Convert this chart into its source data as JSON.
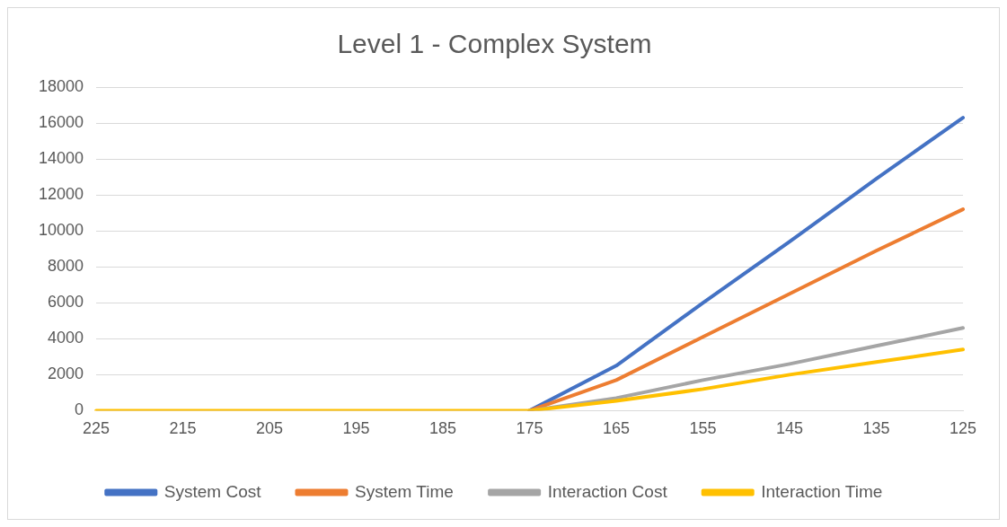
{
  "chart_data": {
    "type": "line",
    "title": "Level 1 - Complex System",
    "categories": [
      "225",
      "215",
      "205",
      "195",
      "185",
      "175",
      "165",
      "155",
      "145",
      "135",
      "125"
    ],
    "series": [
      {
        "name": "System Cost",
        "color": "#4472c4",
        "values": [
          null,
          null,
          null,
          null,
          null,
          0,
          2500,
          6000,
          9400,
          12900,
          16300
        ]
      },
      {
        "name": "System Time",
        "color": "#ed7d31",
        "values": [
          null,
          null,
          null,
          null,
          null,
          0,
          1700,
          4100,
          6500,
          8900,
          11200
        ]
      },
      {
        "name": "Interaction Cost",
        "color": "#a5a5a5",
        "values": [
          null,
          null,
          null,
          null,
          null,
          0,
          700,
          1700,
          2600,
          3600,
          4600
        ]
      },
      {
        "name": "Interaction Time",
        "color": "#ffc000",
        "values": [
          0,
          0,
          0,
          0,
          0,
          0,
          550,
          1200,
          2000,
          2700,
          3400
        ]
      }
    ],
    "ylim": [
      0,
      18000
    ],
    "yticks": [
      0,
      2000,
      4000,
      6000,
      8000,
      10000,
      12000,
      14000,
      16000,
      18000
    ],
    "grid": "y",
    "legend": "bottom",
    "marker": "none",
    "line_style": "solid"
  }
}
